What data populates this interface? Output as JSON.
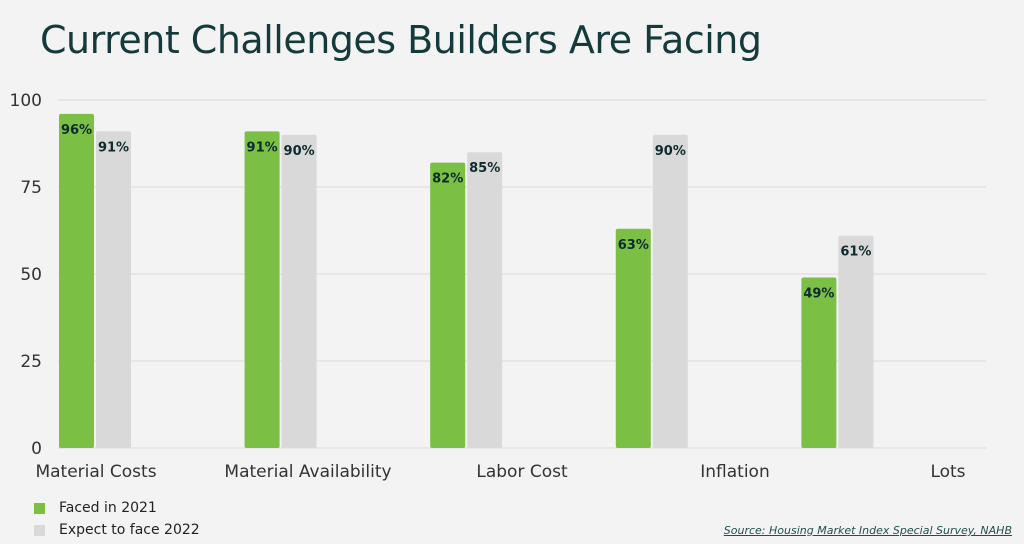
{
  "title": "Current Challenges Builders Are Facing",
  "source": "Source: Housing Market Index Special Survey, NAHB",
  "colors": {
    "series1": "#7bbf44",
    "series2": "#d9d9d9",
    "grid": "#d9d9d9",
    "axis_text": "#333333",
    "label_text": "#0d2b2b"
  },
  "chart_data": {
    "type": "bar",
    "title": "Current Challenges Builders Are Facing",
    "categories": [
      "Material Costs",
      "Material Availability",
      "Labor Cost",
      "Inflation",
      "Lots"
    ],
    "series": [
      {
        "name": "Faced in 2021",
        "values": [
          96,
          91,
          82,
          63,
          49
        ],
        "labels": [
          "96%",
          "91%",
          "82%",
          "63%",
          "49%"
        ]
      },
      {
        "name": "Expect to face 2022",
        "values": [
          91,
          90,
          85,
          90,
          61
        ],
        "labels": [
          "91%",
          "90%",
          "85%",
          "90%",
          "61%"
        ]
      }
    ],
    "yticks": [
      0,
      25,
      50,
      75,
      100
    ],
    "ylim": [
      0,
      100
    ],
    "grid": true,
    "legend_position": "bottom-left"
  }
}
